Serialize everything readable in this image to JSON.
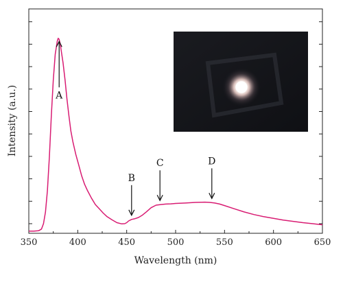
{
  "chart_data": {
    "type": "line",
    "xlabel": "Wavelength (nm)",
    "ylabel": "Intensity (a.u.)",
    "xlim": [
      350,
      650
    ],
    "ylim": [
      0,
      1.0
    ],
    "x_ticks": [
      350,
      400,
      450,
      500,
      550,
      600,
      650
    ],
    "y_ticks": [
      0.0,
      0.1,
      0.2,
      0.3,
      0.4,
      0.5,
      0.6,
      0.7,
      0.8,
      0.9
    ],
    "y_tick_labels_shown": false,
    "grid": false,
    "series": [
      {
        "color": "#d81b72",
        "x": [
          350,
          355,
          360,
          363,
          365,
          367,
          369,
          371,
          373,
          375,
          377,
          379,
          380,
          381,
          382,
          383,
          385,
          387,
          389,
          391,
          393,
          395,
          398,
          401,
          404,
          407,
          410,
          414,
          418,
          422,
          426,
          430,
          435,
          440,
          445,
          448,
          450,
          452,
          455,
          458,
          462,
          466,
          470,
          475,
          480,
          485,
          490,
          495,
          500,
          510,
          520,
          530,
          535,
          540,
          545,
          550,
          560,
          570,
          580,
          590,
          600,
          610,
          620,
          630,
          640,
          650
        ],
        "y": [
          0.01,
          0.01,
          0.012,
          0.02,
          0.045,
          0.1,
          0.2,
          0.36,
          0.55,
          0.72,
          0.84,
          0.9,
          0.915,
          0.91,
          0.89,
          0.86,
          0.8,
          0.72,
          0.63,
          0.55,
          0.48,
          0.43,
          0.37,
          0.32,
          0.27,
          0.23,
          0.2,
          0.165,
          0.135,
          0.115,
          0.095,
          0.078,
          0.063,
          0.05,
          0.044,
          0.045,
          0.05,
          0.058,
          0.065,
          0.068,
          0.074,
          0.085,
          0.1,
          0.12,
          0.132,
          0.135,
          0.137,
          0.138,
          0.14,
          0.142,
          0.145,
          0.146,
          0.145,
          0.142,
          0.137,
          0.13,
          0.115,
          0.1,
          0.088,
          0.078,
          0.07,
          0.062,
          0.056,
          0.05,
          0.045,
          0.04
        ]
      }
    ],
    "annotations": [
      {
        "label": "A",
        "x": 381
      },
      {
        "label": "B",
        "x": 455
      },
      {
        "label": "C",
        "x": 484
      },
      {
        "label": "D",
        "x": 537
      }
    ],
    "inset": {
      "kind": "photo",
      "description_free": true
    }
  }
}
